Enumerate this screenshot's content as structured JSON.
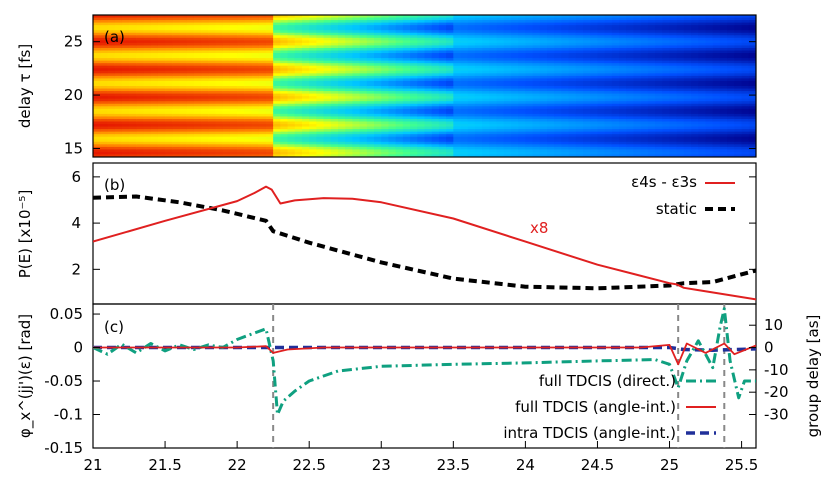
{
  "chart_data": [
    {
      "panel": "(a)",
      "type": "heatmap",
      "ylabel": "delay τ [fs]",
      "y_ticks": [
        "15",
        "20",
        "25"
      ],
      "ylim": [
        14.2,
        27.5
      ],
      "xlim": [
        21,
        25.6
      ],
      "oscillation_period_fs": 2.6,
      "colormap": [
        "#00008b",
        "#0050ff",
        "#00c8ff",
        "#40ff90",
        "#ffff00",
        "#ff8000",
        "#e00000"
      ]
    },
    {
      "panel": "(b)",
      "type": "line",
      "ylabel": "P(E) [x10⁻⁵]",
      "y_ticks": [
        "2",
        "4",
        "6"
      ],
      "ylim": [
        0.5,
        6.6
      ],
      "xlim": [
        21,
        25.6
      ],
      "annotation": "x8",
      "series": [
        {
          "name": "ε4s - ε3s",
          "color": "#e02020",
          "dash": "solid",
          "points": [
            [
              21,
              3.2
            ],
            [
              21.5,
              4.1
            ],
            [
              22,
              4.95
            ],
            [
              22.12,
              5.3
            ],
            [
              22.2,
              5.58
            ],
            [
              22.24,
              5.45
            ],
            [
              22.3,
              4.85
            ],
            [
              22.4,
              4.98
            ],
            [
              22.6,
              5.08
            ],
            [
              22.8,
              5.05
            ],
            [
              23.0,
              4.9
            ],
            [
              23.5,
              4.2
            ],
            [
              24.0,
              3.2
            ],
            [
              24.5,
              2.2
            ],
            [
              25.0,
              1.4
            ],
            [
              25.05,
              1.35
            ],
            [
              25.1,
              1.2
            ],
            [
              25.2,
              1.1
            ],
            [
              25.6,
              0.7
            ]
          ]
        },
        {
          "name": "static",
          "color": "#000000",
          "dash": "dashed",
          "points": [
            [
              21,
              5.1
            ],
            [
              21.3,
              5.15
            ],
            [
              21.6,
              4.9
            ],
            [
              21.9,
              4.55
            ],
            [
              22.2,
              4.1
            ],
            [
              22.25,
              3.65
            ],
            [
              22.5,
              3.15
            ],
            [
              23.0,
              2.3
            ],
            [
              23.5,
              1.6
            ],
            [
              24.0,
              1.25
            ],
            [
              24.5,
              1.18
            ],
            [
              25.0,
              1.3
            ],
            [
              25.1,
              1.4
            ],
            [
              25.3,
              1.45
            ],
            [
              25.6,
              1.95
            ]
          ]
        }
      ]
    },
    {
      "panel": "(c)",
      "type": "line",
      "ylabel": "φ_x^(jj')(ε) [rad]",
      "ylabel_right": "group delay [as]",
      "y_ticks": [
        "-0.15",
        "-0.1",
        "-0.05",
        "0",
        "0.05"
      ],
      "y_ticks_right": [
        "-30",
        "-20",
        "-10",
        "0",
        "10"
      ],
      "ylim": [
        -0.15,
        0.065
      ],
      "xlim": [
        21,
        25.6
      ],
      "x_ticks": [
        "21",
        "21.5",
        "22",
        "22.5",
        "23",
        "23.5",
        "24",
        "24.5",
        "25",
        "25.5"
      ],
      "vlines_x": [
        22.25,
        25.06,
        25.38
      ],
      "series": [
        {
          "name": "full TDCIS (direct.)",
          "color": "#0fa080",
          "dash": "dashdot",
          "points": [
            [
              21,
              0.0
            ],
            [
              21.1,
              -0.01
            ],
            [
              21.2,
              0.005
            ],
            [
              21.3,
              -0.008
            ],
            [
              21.4,
              0.006
            ],
            [
              21.5,
              -0.005
            ],
            [
              21.6,
              0.004
            ],
            [
              21.7,
              -0.003
            ],
            [
              21.8,
              0.004
            ],
            [
              21.9,
              0.0
            ],
            [
              22.0,
              0.012
            ],
            [
              22.1,
              0.02
            ],
            [
              22.2,
              0.028
            ],
            [
              22.25,
              -0.02
            ],
            [
              22.28,
              -0.1
            ],
            [
              22.32,
              -0.08
            ],
            [
              22.4,
              -0.065
            ],
            [
              22.5,
              -0.05
            ],
            [
              22.7,
              -0.035
            ],
            [
              23.0,
              -0.028
            ],
            [
              23.5,
              -0.025
            ],
            [
              24.0,
              -0.023
            ],
            [
              24.5,
              -0.02
            ],
            [
              24.9,
              -0.018
            ],
            [
              25.0,
              -0.025
            ],
            [
              25.06,
              -0.06
            ],
            [
              25.12,
              -0.02
            ],
            [
              25.2,
              0.01
            ],
            [
              25.3,
              -0.03
            ],
            [
              25.35,
              0.03
            ],
            [
              25.38,
              0.058
            ],
            [
              25.42,
              -0.02
            ],
            [
              25.48,
              -0.075
            ],
            [
              25.52,
              -0.05
            ],
            [
              25.6,
              -0.05
            ]
          ]
        },
        {
          "name": "full TDCIS (angle-int.)",
          "color": "#e02020",
          "dash": "solid",
          "points": [
            [
              21,
              0.0
            ],
            [
              22.0,
              0.0
            ],
            [
              22.2,
              0.002
            ],
            [
              22.25,
              -0.008
            ],
            [
              22.35,
              -0.003
            ],
            [
              22.6,
              0.0
            ],
            [
              24.0,
              0.0
            ],
            [
              24.8,
              0.0
            ],
            [
              25.0,
              0.004
            ],
            [
              25.06,
              -0.025
            ],
            [
              25.12,
              0.006
            ],
            [
              25.25,
              -0.008
            ],
            [
              25.38,
              0.006
            ],
            [
              25.45,
              -0.01
            ],
            [
              25.6,
              0.003
            ]
          ]
        },
        {
          "name": "intra TDCIS (angle-int.)",
          "color": "#20309a",
          "dash": "dashed",
          "points": [
            [
              21,
              0.0
            ],
            [
              25.0,
              0.0
            ],
            [
              25.1,
              -0.003
            ],
            [
              25.3,
              -0.004
            ],
            [
              25.6,
              -0.002
            ]
          ]
        }
      ]
    }
  ],
  "labels": {
    "panel_a": "(a)",
    "panel_b": "(b)",
    "panel_c": "(c)",
    "legend_b_1": "ε4s - ε3s",
    "legend_b_2": "static",
    "legend_c_1": "full TDCIS (direct.)",
    "legend_c_2": "full TDCIS (angle-int.)",
    "legend_c_3": "intra TDCIS (angle-int.)",
    "annot_x8": "x8",
    "ylabel_a": "delay τ [fs]",
    "ylabel_b": "P(E) [x10⁻⁵]",
    "ylabel_c": "φ_x^(jj')(ε) [rad]",
    "ylabel_c_right": "group delay [as]"
  }
}
